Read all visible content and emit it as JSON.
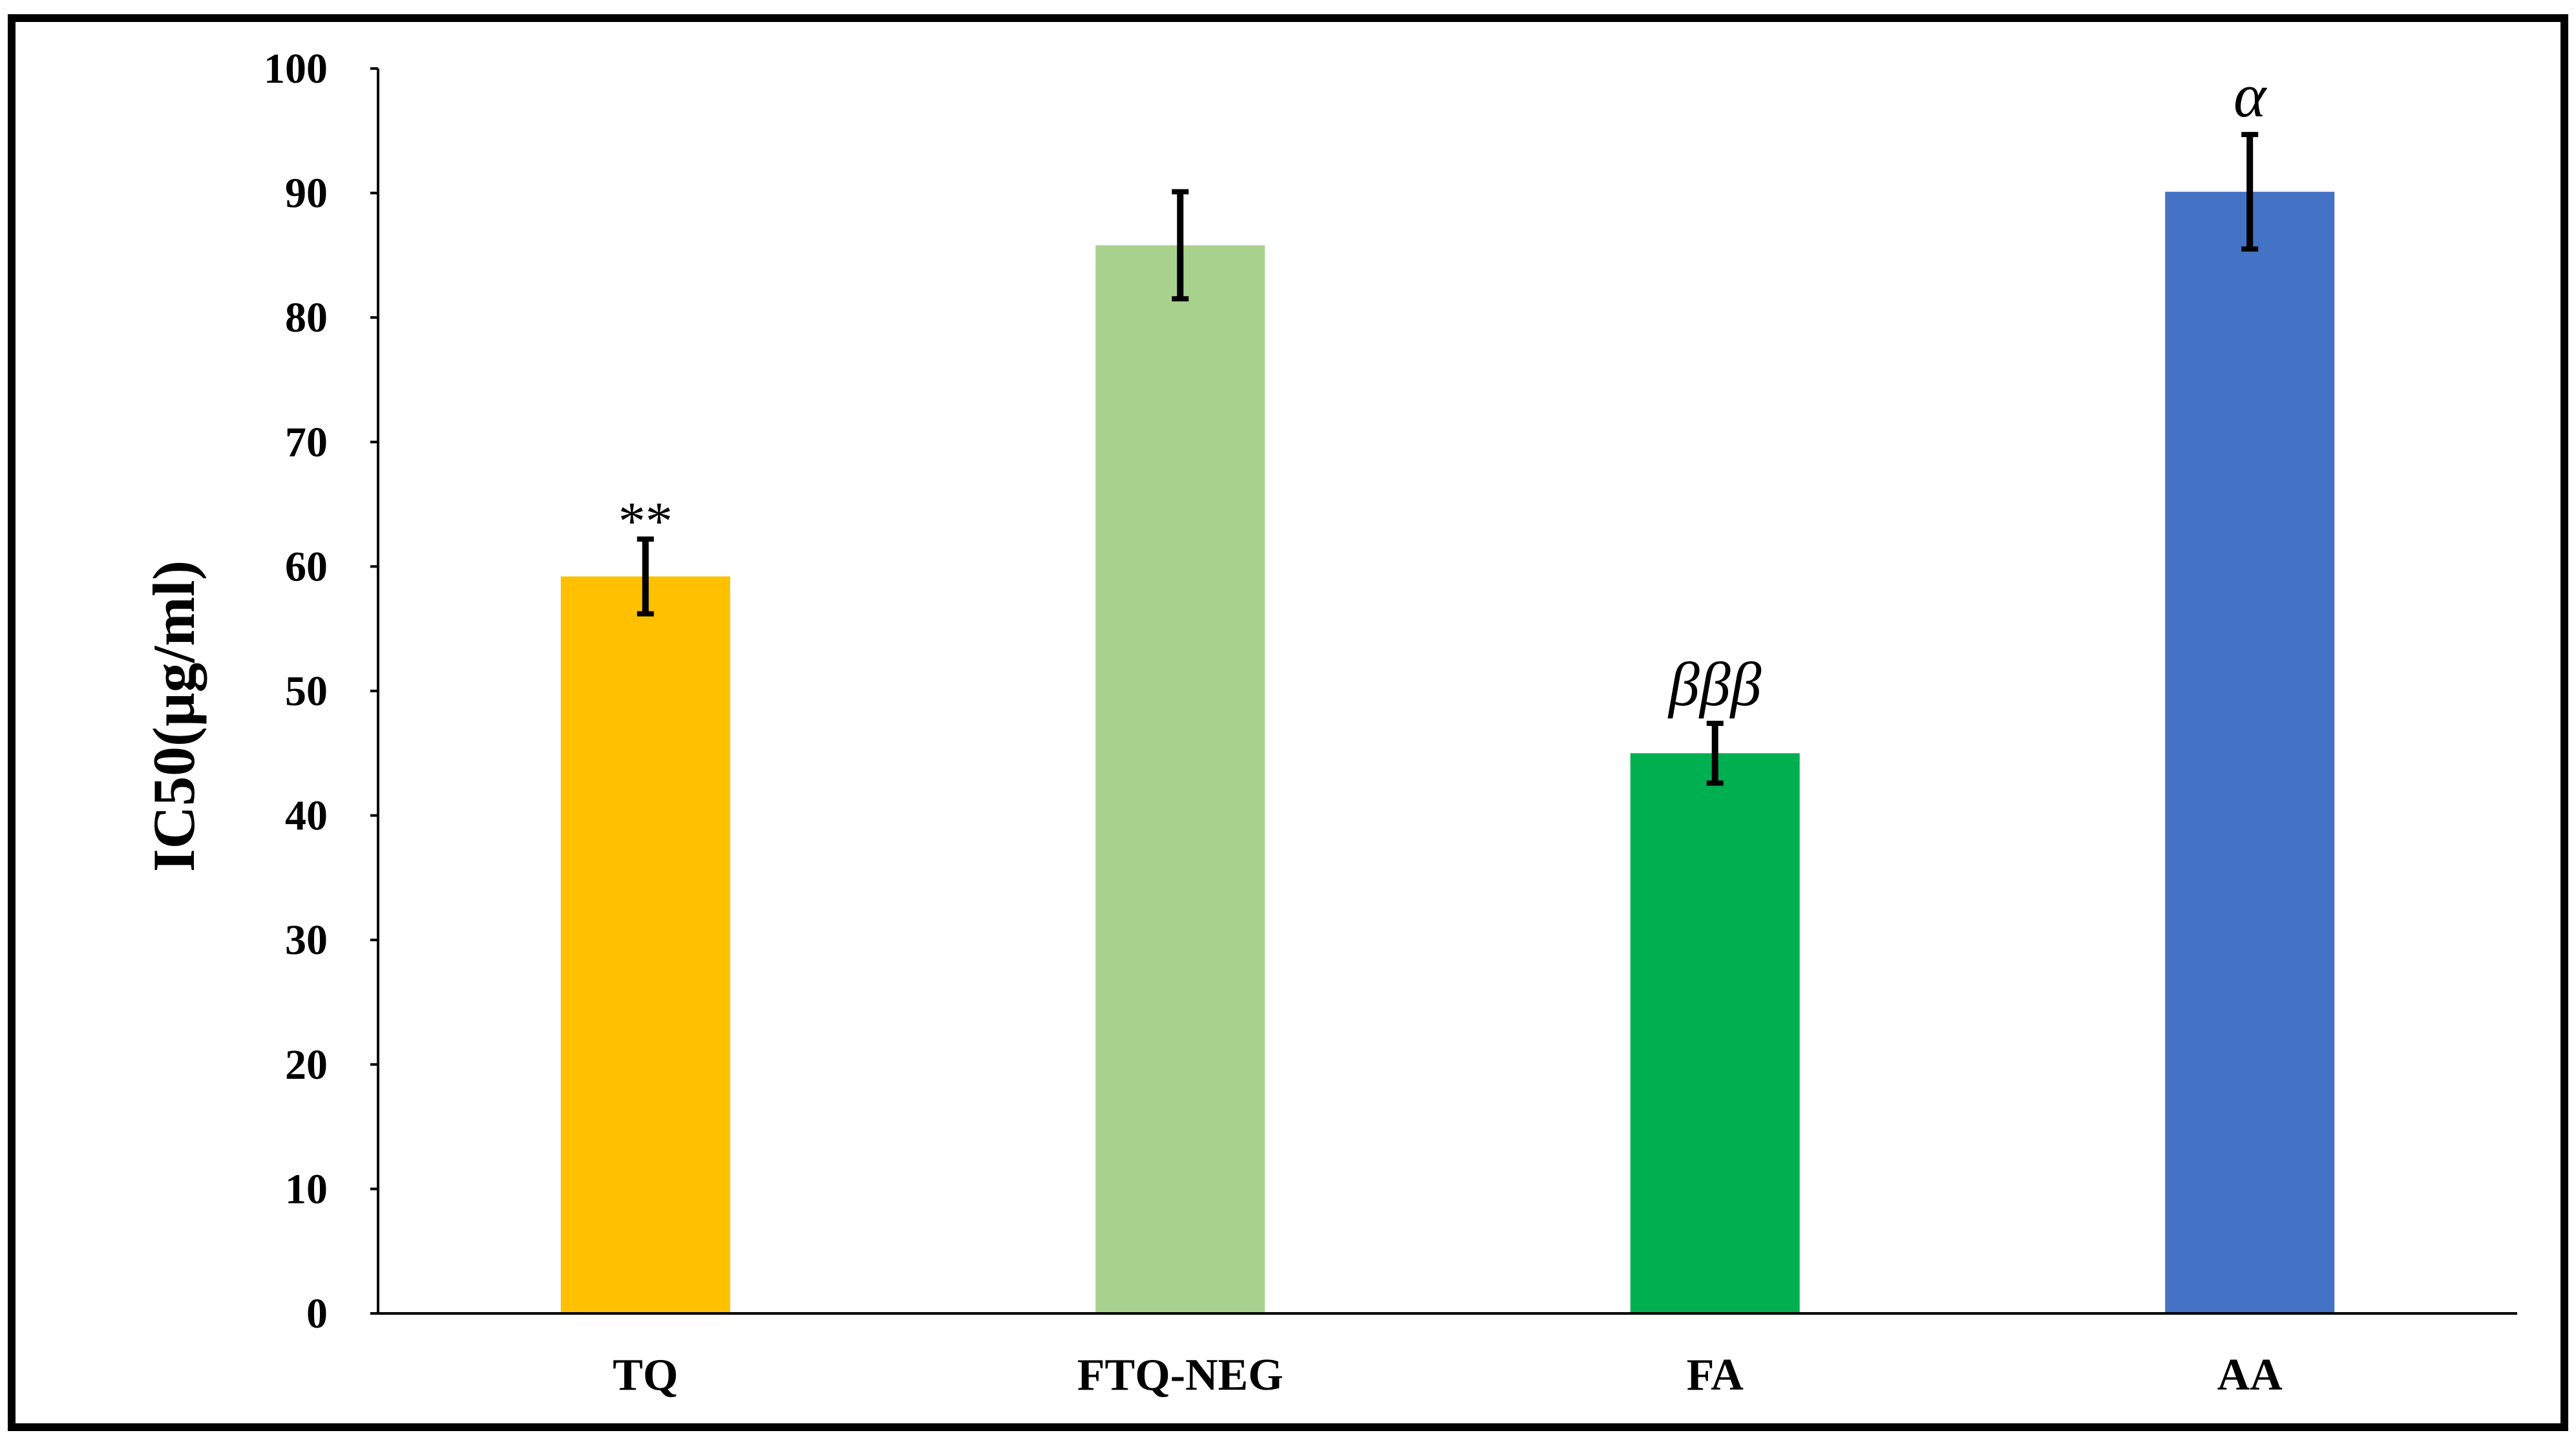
{
  "chart_data": {
    "type": "bar",
    "title": "",
    "xlabel": "",
    "ylabel": "IC50(µg/ml)",
    "ylim": [
      0,
      100
    ],
    "yticks": [
      0,
      10,
      20,
      30,
      40,
      50,
      60,
      70,
      80,
      90,
      100
    ],
    "yticks_labels": [
      "0",
      "10",
      "20",
      "30",
      "40",
      "50",
      "60",
      "70",
      "80",
      "90",
      "100"
    ],
    "grid": false,
    "legend": "none",
    "categories": [
      "TQ",
      "FTQ-NEG",
      "FA",
      "AA"
    ],
    "values": [
      59.2,
      85.8,
      45.0,
      90.1
    ],
    "errors": [
      3.0,
      4.3,
      2.4,
      4.6
    ],
    "colors": [
      "#FFC000",
      "#A9D18E",
      "#00B050",
      "#4472C4"
    ],
    "annotations": [
      "**",
      "",
      "βββ",
      "α"
    ],
    "error_bar_color": "#000000",
    "frame_color": "#000000"
  }
}
